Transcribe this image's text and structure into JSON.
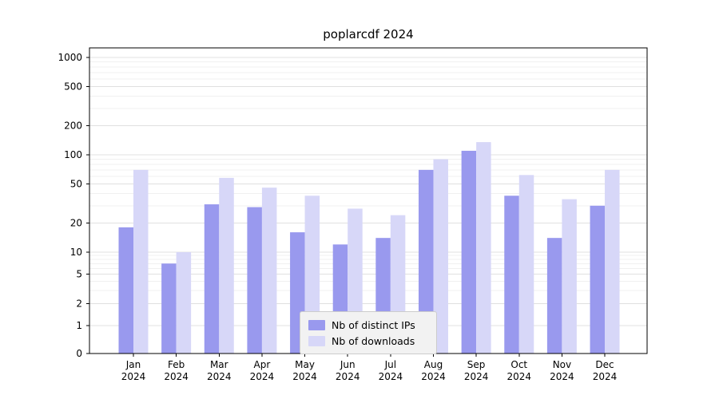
{
  "chart_data": {
    "type": "bar",
    "title": "poplarcdf 2024",
    "categories": [
      "Jan",
      "Feb",
      "Mar",
      "Apr",
      "May",
      "Jun",
      "Jul",
      "Aug",
      "Sep",
      "Oct",
      "Nov",
      "Dec"
    ],
    "year": "2024",
    "series": [
      {
        "name": "Nb of distinct IPs",
        "color": "#9999ee",
        "values": [
          18,
          7,
          31,
          29,
          16,
          12,
          14,
          70,
          110,
          38,
          14,
          30
        ]
      },
      {
        "name": "Nb of downloads",
        "color": "#d7d7f8",
        "values": [
          70,
          10,
          58,
          46,
          38,
          28,
          24,
          90,
          135,
          62,
          35,
          70
        ]
      }
    ],
    "yticks": [
      0,
      1,
      2,
      5,
      10,
      20,
      50,
      100,
      200,
      500,
      1000
    ],
    "scale": "symlog",
    "ylim": [
      0,
      1250
    ],
    "grid": true,
    "legend_position": "lower center",
    "colors": {
      "axis": "#000000",
      "grid_major": "#e0e0e0",
      "grid_minor": "#f0f0f0",
      "tick_label": "#000000"
    }
  }
}
